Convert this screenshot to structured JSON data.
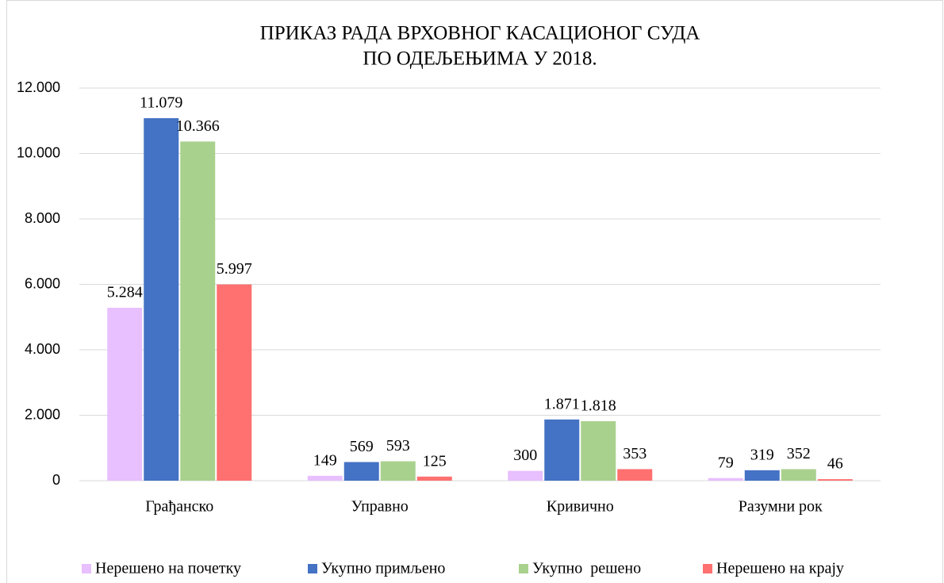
{
  "chart_data": {
    "type": "bar",
    "title": [
      "ПРИКАЗ РАДА ВРХОВНОГ КАСАЦИОНОГ СУДА",
      "ПО ОДЕЉЕЊИМА У 2018."
    ],
    "categories": [
      "Грађанско",
      "Управно",
      "Кривично",
      "Разумни рок"
    ],
    "series": [
      {
        "name": "Нерешено на почетку",
        "color": "#e8bfff",
        "values": [
          5284,
          149,
          300,
          79
        ],
        "value_labels": [
          "5.284",
          "149",
          "300",
          "79"
        ]
      },
      {
        "name": "Укупно примљено",
        "color": "#4472c4",
        "values": [
          11079,
          569,
          1871,
          319
        ],
        "value_labels": [
          "11.079",
          "569",
          "1.871",
          "319"
        ]
      },
      {
        "name": "Укупно  решено",
        "color": "#a9d18e",
        "values": [
          10366,
          593,
          1818,
          352
        ],
        "value_labels": [
          "10.366",
          "593",
          "1.818",
          "352"
        ]
      },
      {
        "name": "Нерешено на крају",
        "color": "#ff7070",
        "values": [
          5997,
          125,
          353,
          46
        ],
        "value_labels": [
          "5.997",
          "125",
          "353",
          "46"
        ]
      }
    ],
    "ylim": [
      0,
      12000
    ],
    "yticks": [
      0,
      {
        "value": 2000,
        "label": "2.000"
      },
      {
        "value": 4000,
        "label": "4.000"
      },
      {
        "value": 6000,
        "label": "6.000"
      },
      {
        "value": 8000,
        "label": "8.000"
      },
      {
        "value": 10000,
        "label": "10.000"
      },
      {
        "value": 12000,
        "label": "12.000"
      }
    ],
    "grid": true,
    "legend": "bottom"
  }
}
